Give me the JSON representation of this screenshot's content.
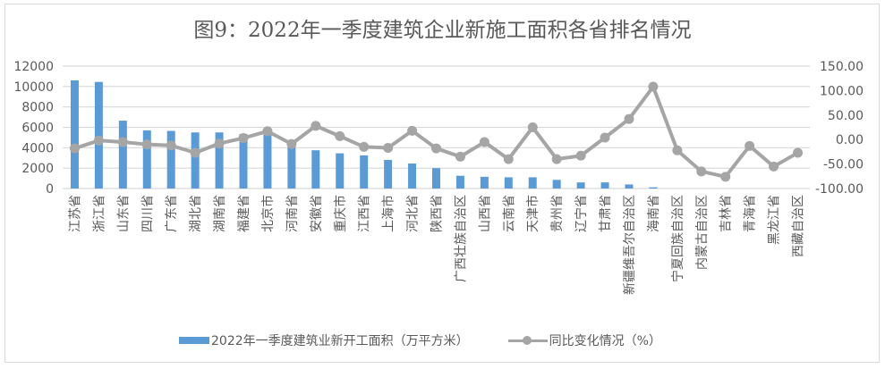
{
  "chart_data": {
    "type": "bar+line",
    "title": "图9：2022年一季度建筑企业新施工面积各省排名情况",
    "categories": [
      "江苏省",
      "浙江省",
      "山东省",
      "四川省",
      "广东省",
      "湖北省",
      "湖南省",
      "福建省",
      "北京市",
      "河南省",
      "安徽省",
      "重庆市",
      "江西省",
      "上海市",
      "河北省",
      "陕西省",
      "广西壮族自治区",
      "山西省",
      "云南省",
      "天津市",
      "贵州省",
      "辽宁省",
      "甘肃省",
      "新疆维吾尔自治区",
      "海南省",
      "宁夏回族自治区",
      "内蒙古自治区",
      "吉林省",
      "青海省",
      "黑龙江省",
      "西藏自治区"
    ],
    "series": [
      {
        "name": "2022年一季度建筑业新开工面积（万平方米）",
        "type": "bar",
        "axis": "left",
        "color": "#5b9bd5",
        "values": [
          10600,
          10450,
          6650,
          5700,
          5650,
          5500,
          5500,
          5350,
          5550,
          4400,
          3750,
          3450,
          3250,
          2800,
          2450,
          2000,
          1250,
          1150,
          1100,
          1100,
          850,
          600,
          600,
          400,
          120,
          0,
          0,
          0,
          0,
          0,
          0
        ]
      },
      {
        "name": "同比变化情况（%）",
        "type": "line",
        "axis": "right",
        "color": "#a5a5a5",
        "values": [
          -18,
          -2,
          -5,
          -10,
          -12,
          -27,
          -8,
          3,
          17,
          -9,
          28,
          7,
          -15,
          -17,
          18,
          -18,
          -35,
          -5,
          -40,
          25,
          -40,
          -33,
          4,
          42,
          108,
          -22,
          -65,
          -76,
          -13,
          -55,
          -27
        ]
      }
    ],
    "left_axis": {
      "ticks": [
        "0",
        "2000",
        "4000",
        "6000",
        "8000",
        "10000",
        "12000"
      ],
      "ylim": [
        0,
        12000
      ]
    },
    "right_axis": {
      "ticks": [
        "-100.00",
        "-50.00",
        "0.00",
        "50.00",
        "100.00",
        "150.00"
      ],
      "ylim": [
        -100,
        150
      ]
    },
    "xlabel": "",
    "ylabel": "",
    "grid": true,
    "legend_position": "bottom"
  },
  "legend": {
    "bar_label": "2022年一季度建筑业新开工面积（万平方米）",
    "line_label": "同比变化情况（%）"
  }
}
